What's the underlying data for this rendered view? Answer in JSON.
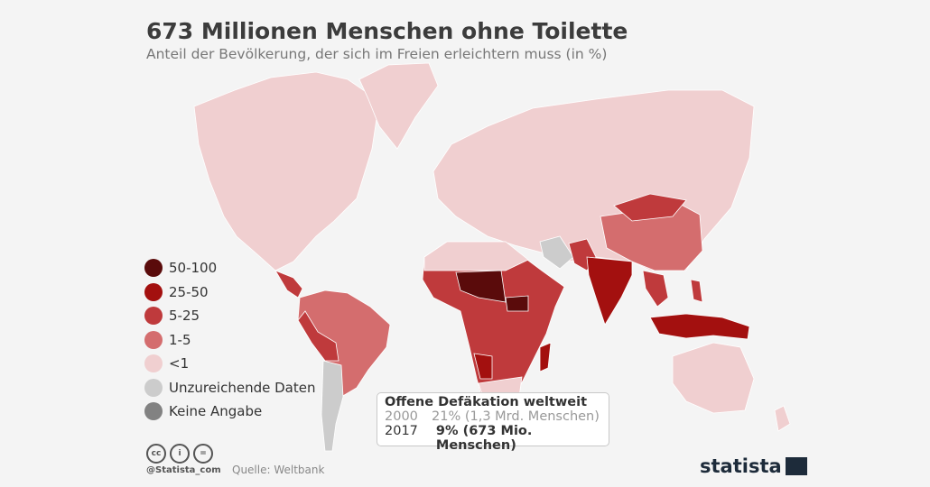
{
  "header": {
    "title": "673 Millionen Menschen ohne Toilette",
    "subtitle": "Anteil der Bevölkerung, der sich im Freien erleichtern muss (in %)"
  },
  "legend": [
    {
      "label": "50-100",
      "color": "#5a0b0b"
    },
    {
      "label": "25-50",
      "color": "#a3100f"
    },
    {
      "label": "5-25",
      "color": "#bf3a3c"
    },
    {
      "label": "1-5",
      "color": "#d46d6e"
    },
    {
      "label": "<1",
      "color": "#f0cfd0"
    },
    {
      "label": "Unzureichende Daten",
      "color": "#cccccc"
    },
    {
      "label": "Keine Angabe",
      "color": "#828282"
    }
  ],
  "infobox": {
    "title": "Offene Defäkation weltweit",
    "rows": [
      {
        "year": "2000",
        "value": "21% (1,3 Mrd. Menschen)"
      },
      {
        "year": "2017",
        "value": "9% (673 Mio. Menschen)"
      }
    ]
  },
  "footer": {
    "handle": "@Statista_com",
    "source": "Quelle: Weltbank",
    "logo": "statista",
    "license_icons": [
      "cc-icon",
      "by-icon",
      "nd-icon"
    ]
  }
}
